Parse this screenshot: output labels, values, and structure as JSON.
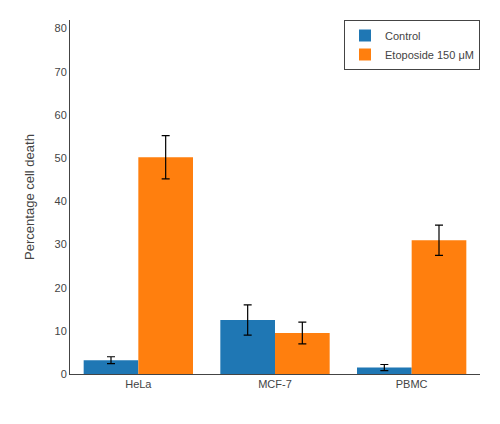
{
  "chart_data": {
    "type": "bar",
    "categories": [
      "HeLa",
      "MCF-7",
      "PBMC"
    ],
    "series": [
      {
        "name": "Control",
        "values": [
          3.2,
          12.5,
          1.5
        ],
        "errors": [
          0.8,
          3.5,
          0.7
        ]
      },
      {
        "name": "Etoposide 150 μM",
        "values": [
          50.2,
          9.5,
          31.0
        ],
        "errors": [
          5.0,
          2.5,
          3.5
        ]
      }
    ],
    "ylabel": "Percentage cell death",
    "ylim": [
      0,
      82
    ],
    "yticks": [
      0,
      10,
      20,
      30,
      40,
      50,
      60,
      70,
      80
    ],
    "grid": false,
    "legend": "upper right"
  }
}
